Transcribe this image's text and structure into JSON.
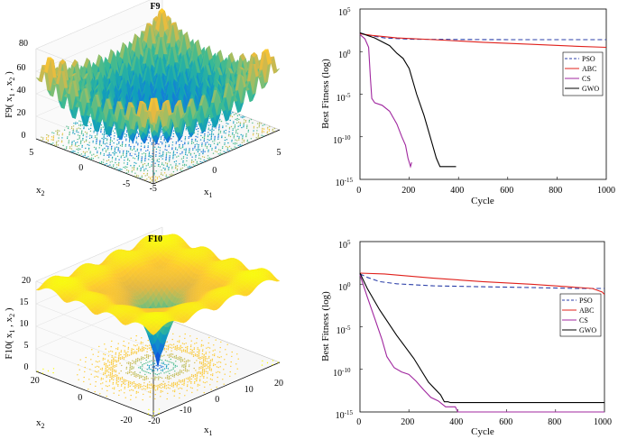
{
  "chart_data": [
    {
      "type": "surface",
      "title": "F9",
      "zlabel_main": "F9( x",
      "zlabel_sub1": "1",
      "zlabel_mid": " , x",
      "zlabel_sub2": "2",
      "zlabel_end": " )",
      "xlabel_main": "x",
      "xlabel_sub": "1",
      "ylabel_main": "x",
      "ylabel_sub": "2",
      "z_ticks": [
        "0",
        "20",
        "40",
        "60",
        "80"
      ],
      "x_ticks": [
        "-5",
        "0",
        "5"
      ],
      "y_ticks": [
        "-5",
        "0",
        "5"
      ],
      "xlim": [
        -5.12,
        5.12
      ],
      "ylim": [
        -5.12,
        5.12
      ],
      "zlim": [
        0,
        85
      ],
      "function": "rastrigin"
    },
    {
      "type": "line",
      "xlabel": "Cycle",
      "ylabel": "Best Fitness (log)",
      "xlim": [
        0,
        1000
      ],
      "ylim_log10": [
        -15,
        5
      ],
      "x_ticks": [
        "0",
        "200",
        "400",
        "600",
        "800",
        "1000"
      ],
      "y_tick_exponents": [
        "5",
        "0",
        "-5",
        "-10",
        "-15"
      ],
      "y_tick_base": "10",
      "legend_position": "right",
      "series": [
        {
          "name": "PSO",
          "color": "#2b3fa8",
          "dash": "5,3",
          "points": [
            [
              0,
              2.2
            ],
            [
              40,
              1.9
            ],
            [
              100,
              1.6
            ],
            [
              200,
              1.45
            ],
            [
              400,
              1.42
            ],
            [
              600,
              1.4
            ],
            [
              800,
              1.4
            ],
            [
              1000,
              1.4
            ]
          ]
        },
        {
          "name": "ABC",
          "color": "#e0201b",
          "dash": "",
          "points": [
            [
              0,
              2.1
            ],
            [
              50,
              1.9
            ],
            [
              150,
              1.6
            ],
            [
              300,
              1.4
            ],
            [
              500,
              1.1
            ],
            [
              700,
              0.85
            ],
            [
              900,
              0.6
            ],
            [
              1000,
              0.5
            ]
          ]
        },
        {
          "name": "CS",
          "color": "#a0279f",
          "dash": "",
          "points": [
            [
              0,
              2.0
            ],
            [
              20,
              1.5
            ],
            [
              35,
              0.5
            ],
            [
              42,
              -3
            ],
            [
              48,
              -5.5
            ],
            [
              60,
              -6
            ],
            [
              90,
              -6.3
            ],
            [
              120,
              -7
            ],
            [
              150,
              -8.5
            ],
            [
              170,
              -10
            ],
            [
              185,
              -11
            ],
            [
              195,
              -12.5
            ],
            [
              205,
              -13.5
            ],
            [
              210,
              -13
            ]
          ]
        },
        {
          "name": "GWO",
          "color": "#000000",
          "dash": "",
          "points": [
            [
              0,
              2.2
            ],
            [
              60,
              1.6
            ],
            [
              120,
              0.7
            ],
            [
              150,
              -0.2
            ],
            [
              175,
              -0.8
            ],
            [
              200,
              -2
            ],
            [
              230,
              -5
            ],
            [
              260,
              -7.5
            ],
            [
              290,
              -10.5
            ],
            [
              310,
              -12.5
            ],
            [
              325,
              -13.5
            ],
            [
              390,
              -13.5
            ]
          ]
        }
      ]
    },
    {
      "type": "surface",
      "title": "F10",
      "zlabel_main": "F10( x",
      "zlabel_sub1": "1",
      "zlabel_mid": " , x",
      "zlabel_sub2": "2",
      "zlabel_end": " )",
      "xlabel_main": "x",
      "xlabel_sub": "1",
      "ylabel_main": "x",
      "ylabel_sub": "2",
      "z_ticks": [
        "0",
        "5",
        "10",
        "15",
        "20"
      ],
      "x_ticks": [
        "-20",
        "-10",
        "0",
        "10",
        "20"
      ],
      "y_ticks": [
        "-20",
        "0",
        "20"
      ],
      "xlim": [
        -25,
        25
      ],
      "ylim": [
        -25,
        25
      ],
      "zlim": [
        0,
        22
      ],
      "function": "ackley"
    },
    {
      "type": "line",
      "xlabel": "Cycle",
      "ylabel": "Best Fitness (log)",
      "xlim": [
        0,
        1000
      ],
      "ylim_log10": [
        -15,
        5
      ],
      "x_ticks": [
        "0",
        "200",
        "400",
        "600",
        "800",
        "1000"
      ],
      "y_tick_exponents": [
        "5",
        "0",
        "-5",
        "-10",
        "-15"
      ],
      "y_tick_base": "10",
      "legend_position": "right",
      "series": [
        {
          "name": "PSO",
          "color": "#2b3fa8",
          "dash": "5,3",
          "points": [
            [
              0,
              1.2
            ],
            [
              30,
              0.8
            ],
            [
              80,
              0.3
            ],
            [
              150,
              0.05
            ],
            [
              300,
              -0.2
            ],
            [
              500,
              -0.3
            ],
            [
              700,
              -0.4
            ],
            [
              900,
              -0.5
            ],
            [
              1000,
              -0.5
            ]
          ]
        },
        {
          "name": "ABC",
          "color": "#e0201b",
          "dash": "",
          "points": [
            [
              0,
              1.3
            ],
            [
              100,
              1.2
            ],
            [
              300,
              0.7
            ],
            [
              500,
              0.3
            ],
            [
              700,
              0
            ],
            [
              850,
              -0.3
            ],
            [
              950,
              -0.5
            ],
            [
              990,
              -0.9
            ],
            [
              1000,
              -1.2
            ]
          ]
        },
        {
          "name": "CS",
          "color": "#a0279f",
          "dash": "",
          "points": [
            [
              0,
              1.1
            ],
            [
              30,
              -1.5
            ],
            [
              60,
              -4
            ],
            [
              90,
              -6.5
            ],
            [
              110,
              -8.5
            ],
            [
              140,
              -9.8
            ],
            [
              170,
              -10.3
            ],
            [
              200,
              -10.6
            ],
            [
              230,
              -11.4
            ],
            [
              260,
              -12.4
            ],
            [
              290,
              -13.3
            ],
            [
              320,
              -13.7
            ],
            [
              350,
              -14.4
            ],
            [
              390,
              -14.4
            ],
            [
              400,
              -15
            ],
            [
              1000,
              -15
            ]
          ]
        },
        {
          "name": "GWO",
          "color": "#000000",
          "dash": "",
          "points": [
            [
              0,
              1.3
            ],
            [
              30,
              -0.5
            ],
            [
              80,
              -3
            ],
            [
              150,
              -6
            ],
            [
              220,
              -8.7
            ],
            [
              280,
              -11.5
            ],
            [
              330,
              -13
            ],
            [
              345,
              -13.8
            ],
            [
              360,
              -13.8
            ],
            [
              370,
              -13.9
            ],
            [
              1000,
              -13.9
            ]
          ]
        }
      ]
    }
  ]
}
